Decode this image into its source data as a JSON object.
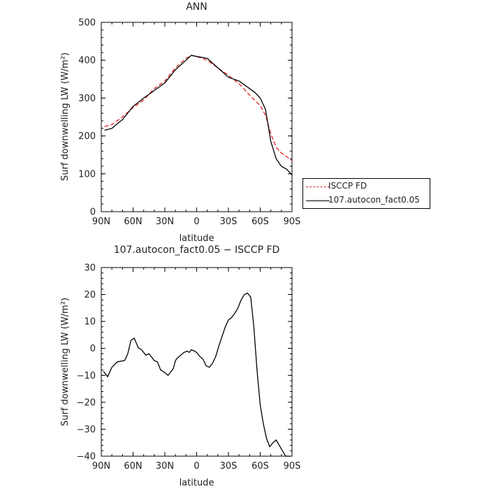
{
  "colors": {
    "obs": "#e02020",
    "model": "#000000",
    "axis": "#000000"
  },
  "legend": [
    {
      "label": "ISCCP FD",
      "style": "dashed",
      "color": "#e02020"
    },
    {
      "label": "107.autocon_fact0.05",
      "style": "solid",
      "color": "#000000"
    }
  ],
  "chart_data": [
    {
      "type": "line",
      "title": "ANN",
      "xlabel": "latitude",
      "ylabel": "Surf downwelling LW (W/m²)",
      "xlim": [
        90,
        -90
      ],
      "ylim": [
        0,
        500
      ],
      "xticks": [
        90,
        60,
        30,
        0,
        -30,
        -60,
        -90
      ],
      "xtick_labels": [
        "90N",
        "60N",
        "30N",
        "0",
        "30S",
        "60S",
        "90S"
      ],
      "yticks": [
        0,
        100,
        200,
        300,
        400,
        500
      ],
      "ytick_labels": [
        "0",
        "100",
        "200",
        "300",
        "400",
        "500"
      ],
      "series": [
        {
          "name": "ISCCP FD",
          "color": "#e02020",
          "style": "dashed",
          "x": [
            87,
            80,
            70,
            60,
            50,
            40,
            30,
            20,
            10,
            5,
            0,
            -10,
            -20,
            -30,
            -40,
            -50,
            -60,
            -65,
            -70,
            -75,
            -80,
            -85,
            -90
          ],
          "y": [
            225,
            230,
            250,
            275,
            295,
            325,
            345,
            380,
            405,
            413,
            410,
            400,
            380,
            360,
            338,
            308,
            280,
            255,
            205,
            170,
            155,
            145,
            135
          ]
        },
        {
          "name": "107.autocon_fact0.05",
          "color": "#000000",
          "style": "solid",
          "x": [
            87,
            80,
            75,
            70,
            60,
            50,
            40,
            30,
            20,
            10,
            5,
            0,
            -10,
            -20,
            -30,
            -35,
            -40,
            -50,
            -55,
            -60,
            -65,
            -70,
            -75,
            -80,
            -85,
            -90
          ],
          "y": [
            215,
            220,
            232,
            243,
            278,
            300,
            320,
            340,
            375,
            400,
            413,
            410,
            405,
            380,
            355,
            350,
            345,
            325,
            315,
            300,
            270,
            185,
            140,
            120,
            112,
            97
          ]
        }
      ]
    },
    {
      "type": "line",
      "title": "107.autocon_fact0.05 − ISCCP FD",
      "xlabel": "latitude",
      "ylabel": "Surf downwelling LW (W/m²)",
      "xlim": [
        90,
        -90
      ],
      "ylim": [
        -40,
        30
      ],
      "xticks": [
        90,
        60,
        30,
        0,
        -30,
        -60,
        -90
      ],
      "xtick_labels": [
        "90N",
        "60N",
        "30N",
        "0",
        "30S",
        "60S",
        "90S"
      ],
      "yticks": [
        -40,
        -30,
        -20,
        -10,
        0,
        10,
        20,
        30
      ],
      "ytick_labels": [
        "−40",
        "−30",
        "−20",
        "−10",
        "0",
        "10",
        "20",
        "30"
      ],
      "series": [
        {
          "name": "",
          "color": "#000000",
          "style": "solid",
          "x": [
            88,
            84,
            80,
            75,
            72,
            68,
            65,
            62,
            59,
            57,
            55,
            52,
            48,
            45,
            42,
            40,
            37,
            34,
            30,
            27,
            24,
            22,
            20,
            18,
            15,
            12,
            9,
            7,
            5,
            2,
            0,
            -3,
            -6,
            -9,
            -12,
            -15,
            -18,
            -21,
            -24,
            -27,
            -30,
            -33,
            -36,
            -39,
            -42,
            -45,
            -48,
            -51,
            -54,
            -57,
            -60,
            -63,
            -66,
            -69,
            -72,
            -75,
            -78,
            -81,
            -84,
            -87,
            -89
          ],
          "y": [
            -8.5,
            -10.5,
            -7,
            -5,
            -4.8,
            -4.5,
            -2,
            3,
            3.8,
            2,
            0.2,
            -0.5,
            -2.5,
            -2,
            -3.5,
            -4.5,
            -5,
            -8,
            -9,
            -10,
            -8.5,
            -7.5,
            -4.5,
            -3.5,
            -2.5,
            -1.5,
            -1,
            -1.5,
            -0.5,
            -1,
            -1.5,
            -3,
            -4,
            -6.5,
            -7,
            -5.5,
            -3,
            1,
            4.5,
            8,
            10.5,
            11.5,
            13,
            15,
            18,
            20,
            20.5,
            19,
            8,
            -8,
            -21,
            -28,
            -33.5,
            -36.5,
            -35,
            -34,
            -36,
            -38,
            -40,
            -40,
            -40
          ]
        }
      ]
    }
  ]
}
